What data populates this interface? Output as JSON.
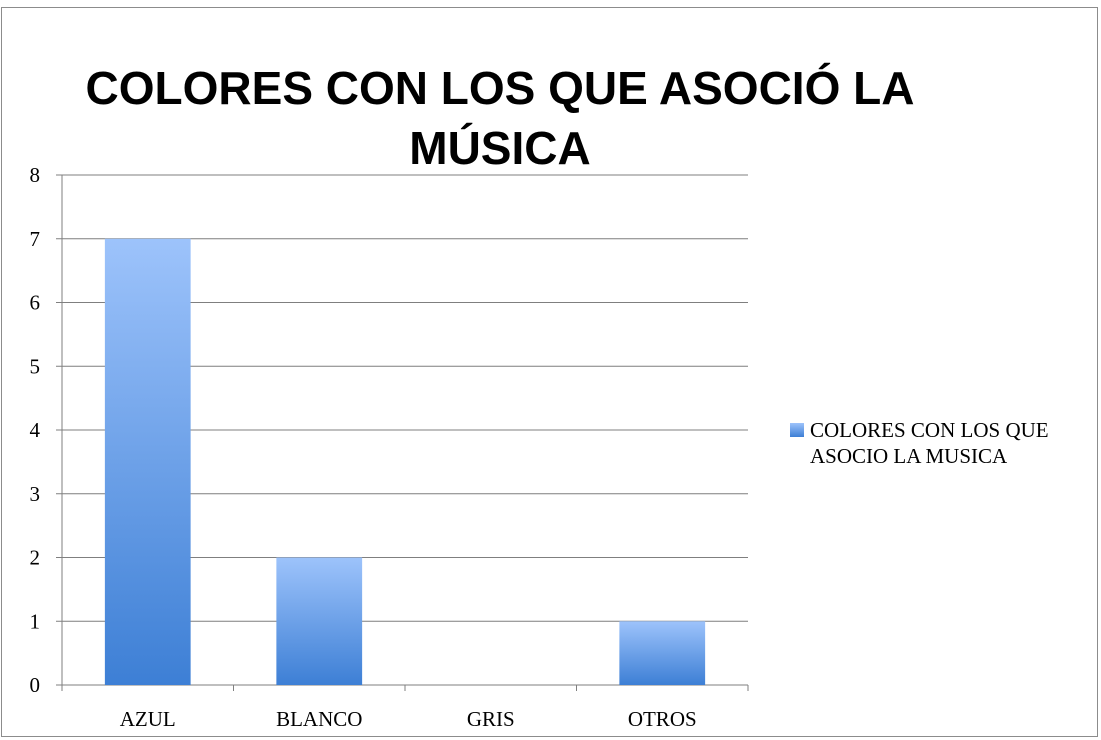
{
  "chart_data": {
    "type": "bar",
    "title": "COLORES CON LOS QUE ASOCIÓ LA MÚSICA",
    "categories": [
      "AZUL",
      "BLANCO",
      "GRIS",
      "OTROS"
    ],
    "series": [
      {
        "name": "COLORES CON LOS QUE ASOCIO LA MUSICA",
        "values": [
          7,
          2,
          0,
          1
        ]
      }
    ],
    "ylim": [
      0,
      8
    ],
    "yticks": [
      0,
      1,
      2,
      3,
      4,
      5,
      6,
      7,
      8
    ],
    "grid": true,
    "legend_position": "right",
    "colors": {
      "bar_top": "#9dc3fb",
      "bar_bottom": "#3d7fd5",
      "grid": "#7f7f7f"
    }
  }
}
